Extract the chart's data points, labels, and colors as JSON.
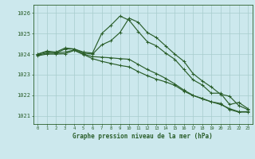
{
  "title": "Graphe pression niveau de la mer (hPa)",
  "bg_color": "#cce8ed",
  "grid_color": "#a8cccc",
  "line_color": "#2a5e2a",
  "xlim": [
    -0.5,
    23.5
  ],
  "ylim": [
    1020.6,
    1026.4
  ],
  "yticks": [
    1021,
    1022,
    1023,
    1024,
    1025,
    1026
  ],
  "ytick_labels": [
    "1021",
    "1022",
    "1023",
    "1024",
    "1025",
    "1026"
  ],
  "xticks": [
    0,
    1,
    2,
    3,
    4,
    5,
    6,
    7,
    8,
    9,
    10,
    11,
    12,
    13,
    14,
    15,
    16,
    17,
    18,
    19,
    20,
    21,
    22,
    23
  ],
  "series": [
    [
      1024.0,
      1024.15,
      1024.1,
      1024.3,
      1024.25,
      1024.1,
      1024.05,
      1025.0,
      1025.4,
      1025.85,
      1025.65,
      1025.1,
      1024.6,
      1024.4,
      1024.05,
      1023.75,
      1023.25,
      1022.75,
      1022.5,
      1022.1,
      1022.1,
      1021.55,
      1021.65,
      1021.35
    ],
    [
      1024.0,
      1024.1,
      1024.05,
      1024.25,
      1024.25,
      1024.05,
      1024.0,
      1024.45,
      1024.65,
      1025.05,
      1025.75,
      1025.55,
      1025.05,
      1024.8,
      1024.4,
      1024.0,
      1023.65,
      1023.05,
      1022.7,
      1022.4,
      1022.05,
      1021.95,
      1021.5,
      1021.3
    ],
    [
      1023.95,
      1024.05,
      1024.05,
      1024.1,
      1024.2,
      1024.0,
      1023.88,
      1023.85,
      1023.82,
      1023.78,
      1023.75,
      1023.5,
      1023.25,
      1023.05,
      1022.82,
      1022.55,
      1022.25,
      1022.0,
      1021.82,
      1021.68,
      1021.55,
      1021.35,
      1021.2,
      1021.2
    ],
    [
      1023.92,
      1024.0,
      1024.0,
      1024.02,
      1024.18,
      1023.98,
      1023.78,
      1023.65,
      1023.55,
      1023.45,
      1023.38,
      1023.15,
      1022.95,
      1022.78,
      1022.65,
      1022.48,
      1022.2,
      1021.98,
      1021.85,
      1021.68,
      1021.6,
      1021.3,
      1021.18,
      1021.18
    ]
  ]
}
